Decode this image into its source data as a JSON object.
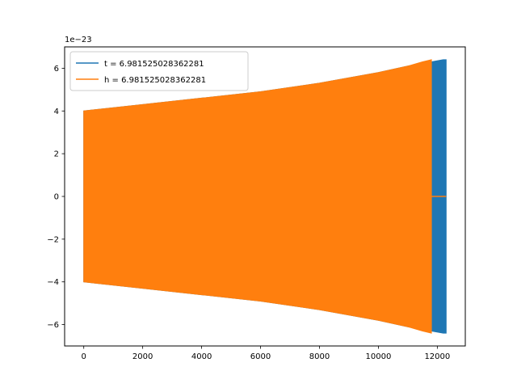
{
  "chart_data": {
    "type": "line",
    "title": "",
    "xlabel": "",
    "ylabel": "",
    "y_offset_label": "1e−23",
    "xlim": [
      -650,
      12950
    ],
    "ylim": [
      -7.0,
      7.0
    ],
    "x_ticks": [
      0,
      2000,
      4000,
      6000,
      8000,
      10000,
      12000
    ],
    "x_tick_labels": [
      "0",
      "2000",
      "4000",
      "6000",
      "8000",
      "10000",
      "12000"
    ],
    "y_ticks": [
      -6,
      -4,
      -2,
      0,
      2,
      4,
      6
    ],
    "y_tick_labels": [
      "−6",
      "−4",
      "−2",
      "0",
      "2",
      "4",
      "6"
    ],
    "grid": false,
    "legend_position": "top-left",
    "series": [
      {
        "name": "t = 6.981525028362281",
        "color": "#1f77b4",
        "envelope": {
          "x": [
            0,
            2000,
            4000,
            6000,
            8000,
            10000,
            11000,
            11800,
            12200,
            12300
          ],
          "upper": [
            4.0,
            4.3,
            4.6,
            4.9,
            5.3,
            5.8,
            6.1,
            6.3,
            6.4,
            6.4
          ],
          "lower": [
            -4.0,
            -4.3,
            -4.6,
            -4.9,
            -5.3,
            -5.8,
            -6.1,
            -6.3,
            -6.4,
            -6.4
          ]
        }
      },
      {
        "name": "h = 6.981525028362281",
        "color": "#ff7f0e",
        "envelope": {
          "x": [
            0,
            2000,
            4000,
            6000,
            8000,
            10000,
            11000,
            11500,
            11800
          ],
          "upper": [
            4.0,
            4.3,
            4.6,
            4.9,
            5.3,
            5.8,
            6.1,
            6.3,
            6.4
          ],
          "lower": [
            -4.0,
            -4.3,
            -4.6,
            -4.9,
            -5.3,
            -5.8,
            -6.1,
            -6.3,
            -6.4
          ]
        },
        "tail_zero_until": 12300
      }
    ]
  }
}
